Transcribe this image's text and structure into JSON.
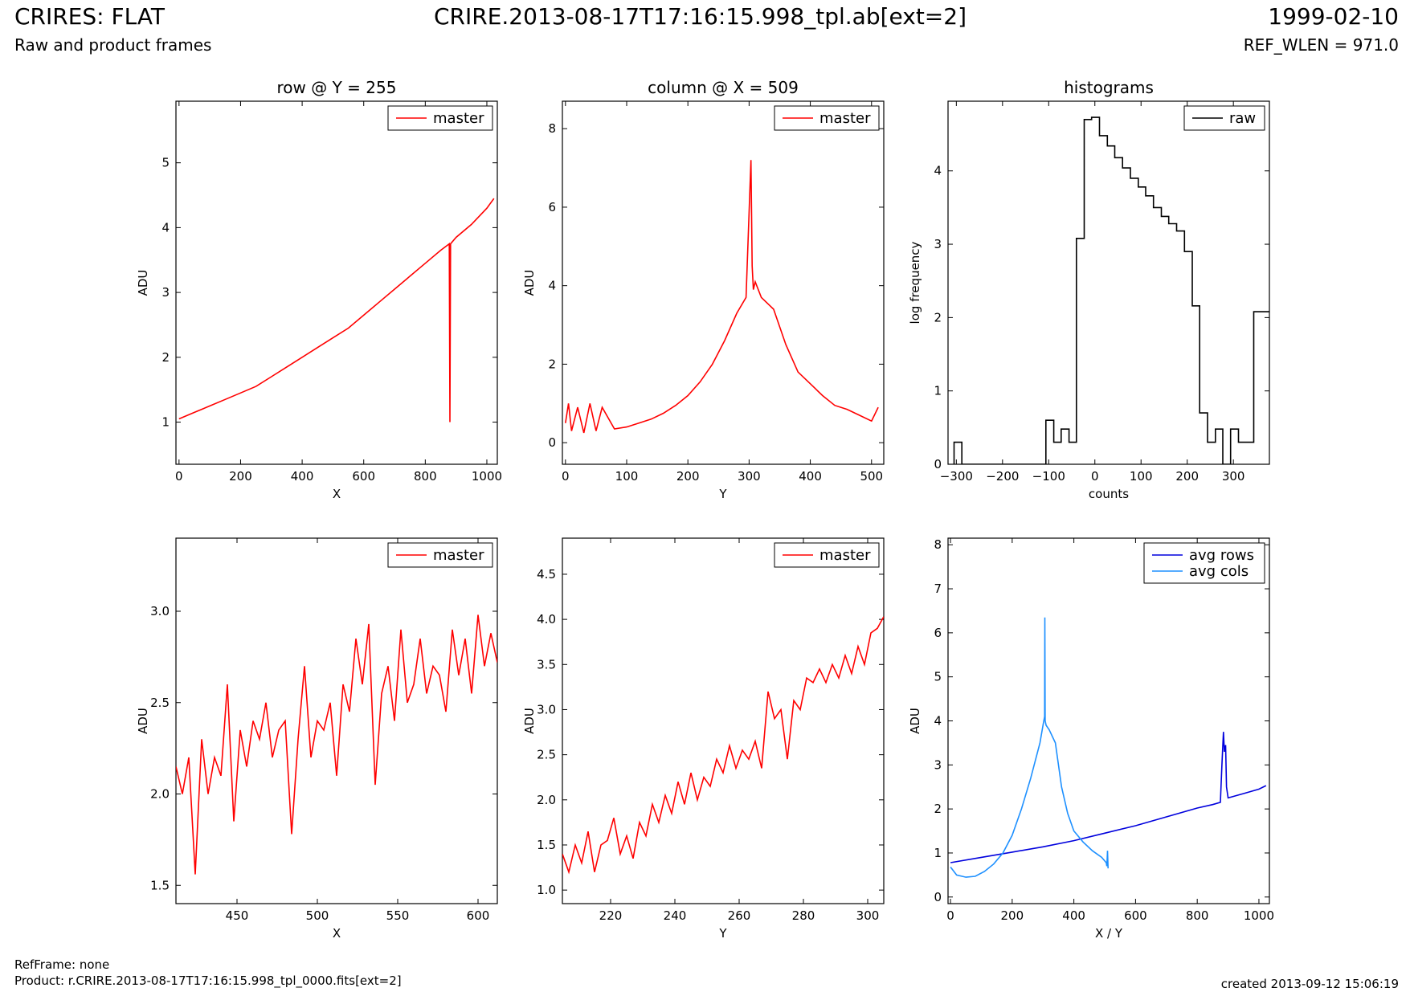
{
  "header": {
    "title_left": "CRIRES: FLAT",
    "subtitle_left": "Raw and product frames",
    "title_center": "CRIRE.2013-08-17T17:16:15.998_tpl.ab[ext=2]",
    "title_right": "1999-02-10",
    "subtitle_right": "REF_WLEN = 971.0"
  },
  "footer": {
    "refframe": "RefFrame: none",
    "product": "Product: r.CRIRE.2013-08-17T17:16:15.998_tpl_0000.fits[ext=2]",
    "created": "created 2013-09-12 15:06:19"
  },
  "colors": {
    "master": "#ff0000",
    "raw": "#000000",
    "avg_rows": "#0000dd",
    "avg_cols": "#1e90ff"
  },
  "chart_data": [
    {
      "id": "row",
      "type": "line",
      "title": "row @ Y = 255",
      "xlabel": "X",
      "ylabel": "ADU",
      "xlim": [
        -10,
        1034
      ],
      "ylim": [
        0.35,
        5.95
      ],
      "xticks": [
        0,
        200,
        400,
        600,
        800,
        1000
      ],
      "yticks": [
        1,
        2,
        3,
        4,
        5
      ],
      "legend": {
        "position": "top-right",
        "entries": [
          "master"
        ]
      },
      "series": [
        {
          "name": "master",
          "color": "#ff0000",
          "x": [
            0,
            50,
            100,
            150,
            200,
            250,
            300,
            350,
            400,
            450,
            500,
            550,
            600,
            650,
            700,
            750,
            800,
            850,
            878,
            880,
            882,
            900,
            950,
            1000,
            1023
          ],
          "y": [
            1.05,
            1.15,
            1.25,
            1.35,
            1.45,
            1.55,
            1.7,
            1.85,
            2.0,
            2.15,
            2.3,
            2.45,
            2.65,
            2.85,
            3.05,
            3.25,
            3.45,
            3.65,
            3.75,
            1.0,
            3.75,
            3.85,
            4.05,
            4.3,
            4.45
          ]
        }
      ]
    },
    {
      "id": "column",
      "type": "line",
      "title": "column @ X = 509",
      "xlabel": "Y",
      "ylabel": "ADU",
      "xlim": [
        -5,
        520
      ],
      "ylim": [
        -0.55,
        8.7
      ],
      "xticks": [
        0,
        100,
        200,
        300,
        400,
        500
      ],
      "yticks": [
        0,
        2,
        4,
        6,
        8
      ],
      "legend": {
        "position": "top-right",
        "entries": [
          "master"
        ]
      },
      "series": [
        {
          "name": "master",
          "color": "#ff0000",
          "x": [
            0,
            5,
            10,
            20,
            30,
            40,
            50,
            60,
            80,
            100,
            120,
            140,
            160,
            180,
            200,
            220,
            240,
            260,
            280,
            295,
            303,
            305,
            307,
            310,
            320,
            340,
            360,
            380,
            400,
            420,
            440,
            460,
            480,
            500,
            511
          ],
          "y": [
            0.5,
            1.0,
            0.3,
            0.9,
            0.25,
            1.0,
            0.3,
            0.9,
            0.35,
            0.4,
            0.5,
            0.6,
            0.75,
            0.95,
            1.2,
            1.55,
            2.0,
            2.6,
            3.3,
            3.7,
            7.2,
            4.5,
            3.9,
            4.1,
            3.7,
            3.4,
            2.5,
            1.8,
            1.5,
            1.2,
            0.95,
            0.85,
            0.7,
            0.55,
            0.9
          ]
        }
      ]
    },
    {
      "id": "histograms",
      "type": "line",
      "title": "histograms",
      "xlabel": "counts",
      "ylabel": "log frequency",
      "xlim": [
        -318,
        378
      ],
      "ylim": [
        0,
        4.95
      ],
      "xticks": [
        -300,
        -200,
        -100,
        0,
        100,
        200,
        300
      ],
      "xtick_labels": [
        "−300",
        "−200",
        "−100",
        "0",
        "100",
        "200",
        "300"
      ],
      "yticks": [
        0,
        1,
        2,
        3,
        4
      ],
      "legend": {
        "position": "top-right",
        "entries": [
          "raw"
        ]
      },
      "series": [
        {
          "name": "raw",
          "color": "#000000",
          "x": [
            -305,
            -305,
            -288,
            -288,
            -272,
            -272,
            -106,
            -106,
            -89,
            -89,
            -73,
            -73,
            -56,
            -56,
            -40,
            -40,
            -23,
            -23,
            -7,
            -7,
            10,
            10,
            27,
            27,
            43,
            43,
            60,
            60,
            77,
            77,
            94,
            94,
            110,
            110,
            127,
            127,
            144,
            144,
            160,
            160,
            177,
            177,
            194,
            194,
            211,
            211,
            227,
            227,
            244,
            244,
            261,
            261,
            277,
            277,
            294,
            294,
            311,
            311,
            327,
            327,
            344,
            344,
            360,
            360,
            378
          ],
          "y": [
            0,
            0.3,
            0.3,
            0,
            0,
            0,
            0,
            0.6,
            0.6,
            0.3,
            0.3,
            0.48,
            0.48,
            0.3,
            0.3,
            3.08,
            3.08,
            4.7,
            4.7,
            4.73,
            4.73,
            4.48,
            4.48,
            4.34,
            4.34,
            4.18,
            4.18,
            4.04,
            4.04,
            3.9,
            3.9,
            3.78,
            3.78,
            3.66,
            3.66,
            3.5,
            3.5,
            3.38,
            3.38,
            3.28,
            3.28,
            3.18,
            3.18,
            2.9,
            2.9,
            2.16,
            2.16,
            0.7,
            0.7,
            0.3,
            0.3,
            0.48,
            0.48,
            0,
            0,
            0.48,
            0.48,
            0.3,
            0.3,
            0.3,
            0.3,
            2.08,
            2.08,
            2.08,
            2.08
          ]
        }
      ]
    },
    {
      "id": "row-zoom",
      "type": "line",
      "title": "",
      "xlabel": "X",
      "ylabel": "ADU",
      "xlim": [
        412,
        612
      ],
      "ylim": [
        1.4,
        3.4
      ],
      "xticks": [
        450,
        500,
        550,
        600
      ],
      "yticks": [
        1.5,
        2.0,
        2.5,
        3.0
      ],
      "ytick_labels": [
        "1.5",
        "2.0",
        "2.5",
        "3.0"
      ],
      "legend": {
        "position": "top-right",
        "entries": [
          "master"
        ]
      },
      "series": [
        {
          "name": "master",
          "color": "#ff0000",
          "x": [
            412,
            416,
            420,
            424,
            428,
            432,
            436,
            440,
            444,
            448,
            452,
            456,
            460,
            464,
            468,
            472,
            476,
            480,
            484,
            488,
            492,
            496,
            500,
            504,
            508,
            512,
            516,
            520,
            524,
            528,
            532,
            536,
            540,
            544,
            548,
            552,
            556,
            560,
            564,
            568,
            572,
            576,
            580,
            584,
            588,
            592,
            596,
            600,
            604,
            608,
            612
          ],
          "y": [
            2.15,
            2.0,
            2.2,
            1.56,
            2.3,
            2.0,
            2.2,
            2.1,
            2.6,
            1.85,
            2.35,
            2.15,
            2.4,
            2.3,
            2.5,
            2.2,
            2.35,
            2.4,
            1.78,
            2.3,
            2.7,
            2.2,
            2.4,
            2.35,
            2.5,
            2.1,
            2.6,
            2.45,
            2.85,
            2.6,
            2.93,
            2.05,
            2.55,
            2.7,
            2.4,
            2.9,
            2.5,
            2.6,
            2.85,
            2.55,
            2.7,
            2.65,
            2.45,
            2.9,
            2.65,
            2.85,
            2.55,
            2.98,
            2.7,
            2.88,
            2.72
          ]
        }
      ]
    },
    {
      "id": "column-zoom",
      "type": "line",
      "title": "",
      "xlabel": "Y",
      "ylabel": "ADU",
      "xlim": [
        205,
        305
      ],
      "ylim": [
        0.85,
        4.9
      ],
      "xticks": [
        220,
        240,
        260,
        280,
        300
      ],
      "yticks": [
        1.0,
        1.5,
        2.0,
        2.5,
        3.0,
        3.5,
        4.0,
        4.5
      ],
      "ytick_labels": [
        "1.0",
        "1.5",
        "2.0",
        "2.5",
        "3.0",
        "3.5",
        "4.0",
        "4.5"
      ],
      "legend": {
        "position": "top-right",
        "entries": [
          "master"
        ]
      },
      "series": [
        {
          "name": "master",
          "color": "#ff0000",
          "x": [
            205,
            207,
            209,
            211,
            213,
            215,
            217,
            219,
            221,
            223,
            225,
            227,
            229,
            231,
            233,
            235,
            237,
            239,
            241,
            243,
            245,
            247,
            249,
            251,
            253,
            255,
            257,
            259,
            261,
            263,
            265,
            267,
            269,
            271,
            273,
            275,
            277,
            279,
            281,
            283,
            285,
            287,
            289,
            291,
            293,
            295,
            297,
            299,
            301,
            303,
            305
          ],
          "y": [
            1.4,
            1.2,
            1.5,
            1.3,
            1.65,
            1.2,
            1.5,
            1.55,
            1.8,
            1.4,
            1.6,
            1.35,
            1.75,
            1.6,
            1.95,
            1.75,
            2.05,
            1.85,
            2.2,
            1.95,
            2.3,
            2.0,
            2.25,
            2.15,
            2.45,
            2.3,
            2.6,
            2.35,
            2.55,
            2.45,
            2.65,
            2.35,
            3.2,
            2.9,
            3.0,
            2.45,
            3.1,
            3.0,
            3.35,
            3.3,
            3.45,
            3.3,
            3.5,
            3.35,
            3.6,
            3.4,
            3.7,
            3.5,
            3.85,
            3.9,
            4.03
          ]
        }
      ]
    },
    {
      "id": "averages",
      "type": "line",
      "title": "",
      "xlabel": "X / Y",
      "ylabel": "ADU",
      "xlim": [
        -8,
        1034
      ],
      "ylim": [
        -0.15,
        8.15
      ],
      "xticks": [
        0,
        200,
        400,
        600,
        800,
        1000
      ],
      "yticks": [
        0,
        1,
        2,
        3,
        4,
        5,
        6,
        7,
        8
      ],
      "legend": {
        "position": "top-right",
        "entries": [
          "avg rows",
          "avg cols"
        ]
      },
      "series": [
        {
          "name": "avg rows",
          "color": "#0000dd",
          "x": [
            0,
            100,
            200,
            300,
            400,
            500,
            600,
            700,
            800,
            850,
            875,
            880,
            885,
            888,
            892,
            895,
            900,
            950,
            1000,
            1023
          ],
          "y": [
            0.78,
            0.9,
            1.02,
            1.14,
            1.28,
            1.45,
            1.62,
            1.82,
            2.02,
            2.1,
            2.15,
            3.0,
            3.75,
            3.3,
            3.45,
            2.5,
            2.25,
            2.35,
            2.45,
            2.53
          ]
        },
        {
          "name": "avg cols",
          "color": "#1e90ff",
          "x": [
            0,
            20,
            50,
            80,
            110,
            140,
            170,
            200,
            230,
            260,
            290,
            300,
            305,
            306,
            307,
            310,
            320,
            340,
            360,
            380,
            400,
            430,
            460,
            490,
            505,
            507,
            509,
            511
          ],
          "y": [
            0.68,
            0.5,
            0.45,
            0.47,
            0.58,
            0.75,
            1.0,
            1.4,
            2.0,
            2.7,
            3.5,
            3.9,
            4.1,
            6.35,
            4.0,
            3.9,
            3.8,
            3.5,
            2.5,
            1.9,
            1.5,
            1.25,
            1.05,
            0.9,
            0.78,
            0.7,
            1.05,
            0.65
          ]
        }
      ]
    }
  ]
}
